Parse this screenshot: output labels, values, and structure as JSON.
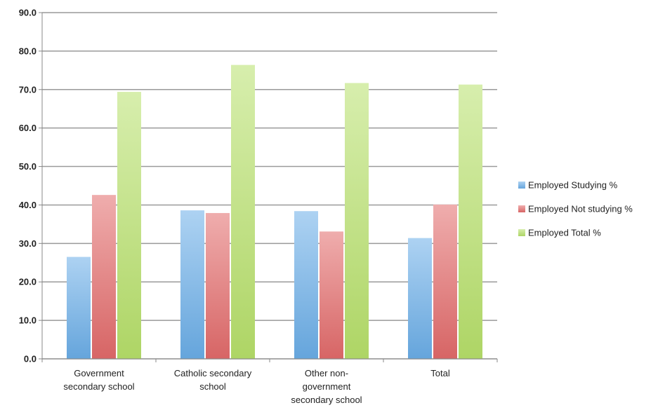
{
  "chart_data": {
    "type": "bar",
    "title": "",
    "xlabel": "",
    "ylabel": "",
    "ylim": [
      0,
      90
    ],
    "yticks": [
      "0.0",
      "10.0",
      "20.0",
      "30.0",
      "40.0",
      "50.0",
      "60.0",
      "70.0",
      "80.0",
      "90.0"
    ],
    "grid": true,
    "legend_position": "right",
    "categories": [
      [
        "Government",
        "secondary school"
      ],
      [
        "Catholic secondary",
        "school"
      ],
      [
        "Other non-",
        "government",
        "secondary school"
      ],
      [
        "Total"
      ]
    ],
    "series": [
      {
        "name": "Employed Studying %",
        "color": "#6aaee8",
        "values": [
          26.5,
          38.6,
          38.4,
          31.4
        ]
      },
      {
        "name": "Employed Not studying %",
        "color": "#e26a6a",
        "values": [
          42.6,
          37.9,
          33.1,
          40.1
        ]
      },
      {
        "name": "Employed Total %",
        "color": "#b7e06a",
        "values": [
          69.4,
          76.4,
          71.7,
          71.3
        ]
      }
    ]
  }
}
